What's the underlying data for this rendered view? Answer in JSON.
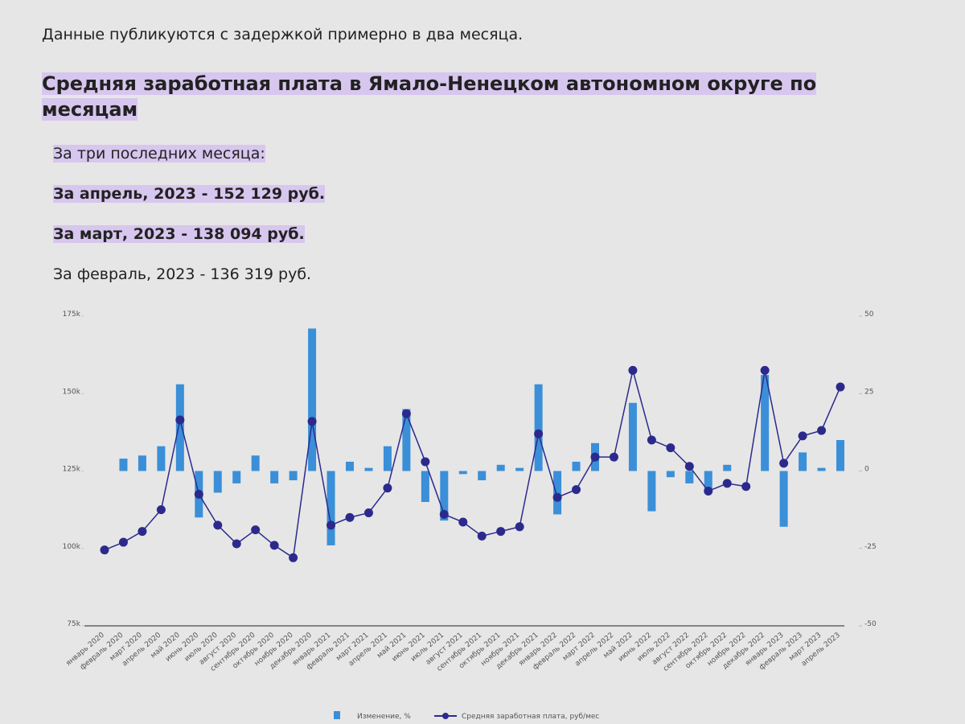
{
  "note_text": "Данные публикуются с задержкой примерно в два месяца.",
  "heading": "Средняя заработная плата в Ямало-Ненецком автономном округе по месяцам",
  "summary": {
    "intro": "За три последних месяца:",
    "lines": [
      "За апрель, 2023 - 152 129 руб.",
      "За март, 2023 - 138 094 руб.",
      "За февраль, 2023 - 136 319 руб."
    ]
  },
  "chart_data": {
    "type": "combo",
    "categories": [
      "январь 2020",
      "февраль 2020",
      "март 2020",
      "апрель 2020",
      "май 2020",
      "июнь 2020",
      "июль 2020",
      "август 2020",
      "сентябрь 2020",
      "октябрь 2020",
      "ноябрь 2020",
      "декабрь 2020",
      "январь 2021",
      "февраль 2021",
      "март 2021",
      "апрель 2021",
      "май 2021",
      "июнь 2021",
      "июль 2021",
      "август 2021",
      "сентябрь 2021",
      "октябрь 2021",
      "ноябрь 2021",
      "декабрь 2021",
      "январь 2022",
      "февраль 2022",
      "март 2022",
      "апрель 2022",
      "май 2022",
      "июнь 2022",
      "июль 2022",
      "август 2022",
      "сентябрь 2022",
      "октябрь 2022",
      "ноябрь 2022",
      "декабрь 2022",
      "январь 2023",
      "февраль 2023",
      "март 2023",
      "апрель 2023"
    ],
    "series": [
      {
        "name": "Изменение, %",
        "type": "bar",
        "axis": "y2",
        "color": "#3a8fd8",
        "values": [
          0,
          4,
          5,
          8,
          28,
          -15,
          -7,
          -4,
          5,
          -4,
          -3,
          46,
          -24,
          3,
          1,
          8,
          20,
          -10,
          -16,
          -1,
          -3,
          2,
          1,
          28,
          -14,
          3,
          9,
          0,
          22,
          -13,
          -2,
          -4,
          -6,
          2,
          0,
          31,
          -18,
          6,
          1,
          10
        ]
      },
      {
        "name": "Средняя заработная плата, руб/мес",
        "type": "line",
        "color": "#2b2a8c",
        "values": [
          99500,
          102000,
          105500,
          112500,
          141500,
          117500,
          107500,
          101500,
          106000,
          101000,
          97000,
          141000,
          107500,
          110000,
          111500,
          119500,
          143500,
          128000,
          111000,
          108500,
          104000,
          105500,
          107000,
          137000,
          116500,
          119000,
          129500,
          129500,
          157500,
          135000,
          132500,
          126500,
          118500,
          121000,
          120000,
          157500,
          127500,
          136319,
          138094,
          152129
        ]
      }
    ],
    "ylim": [
      75000,
      175000
    ],
    "yticks": [
      {
        "value": 75000,
        "label": "75k"
      },
      {
        "value": 100000,
        "label": "100k"
      },
      {
        "value": 125000,
        "label": "125k"
      },
      {
        "value": 150000,
        "label": "150k"
      },
      {
        "value": 175000,
        "label": "175k"
      }
    ],
    "y2lim": [
      -50,
      50
    ],
    "y2ticks": [
      -50,
      -25,
      0,
      25,
      50
    ]
  }
}
